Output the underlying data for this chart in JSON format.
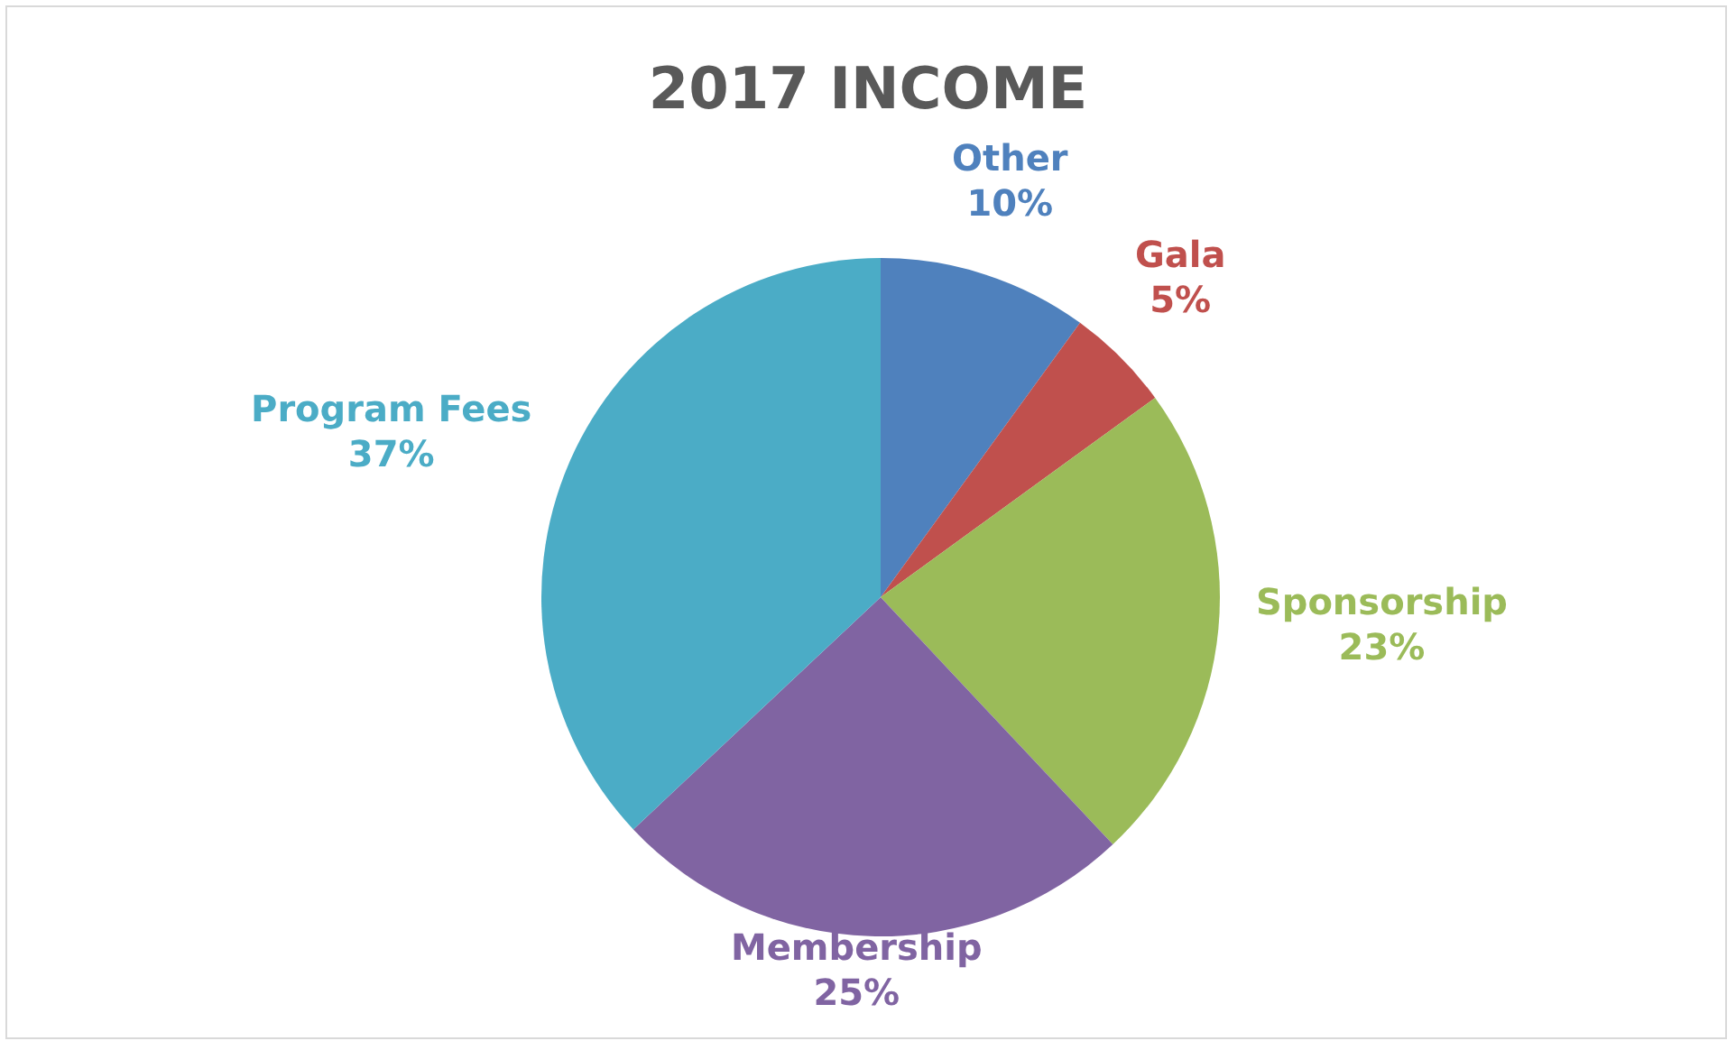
{
  "chart_data": {
    "type": "pie",
    "title": "2017 INCOME",
    "categories": [
      "Other",
      "Gala",
      "Sponsorship",
      "Membership",
      "Program Fees"
    ],
    "values": [
      10,
      5,
      23,
      25,
      37
    ],
    "value_labels": [
      "10%",
      "5%",
      "23%",
      "25%",
      "37%"
    ],
    "colors": [
      "#4f81bd",
      "#c0504d",
      "#9bbb59",
      "#8064a2",
      "#4bacc6"
    ],
    "legend": false
  }
}
